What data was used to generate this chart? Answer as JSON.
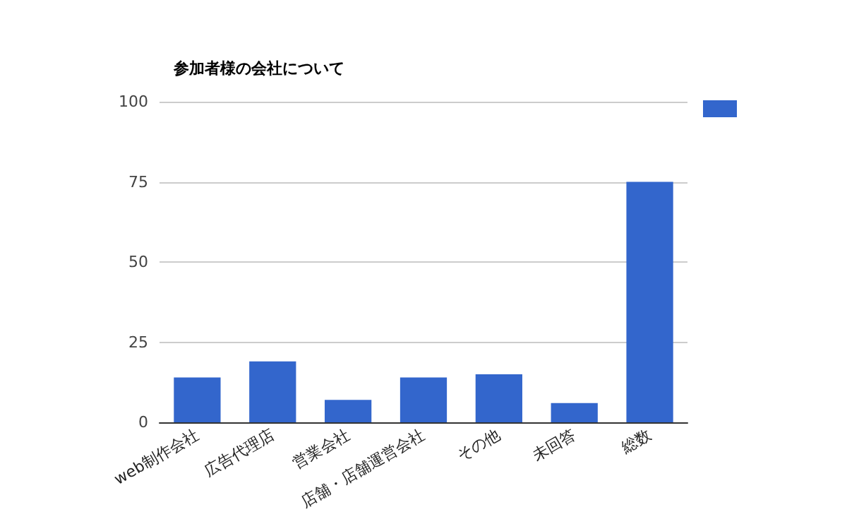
{
  "chart_data": {
    "type": "bar",
    "title": "参加者様の会社について",
    "categories": [
      "web制作会社",
      "広告代理店",
      "営業会社",
      "店舗・店舗運営会社",
      "その他",
      "未回答",
      "総数"
    ],
    "series": [
      {
        "color": "#3366cc",
        "values": [
          14,
          19,
          7,
          14,
          15,
          6,
          75
        ]
      }
    ],
    "ylim": [
      0,
      100
    ],
    "yticks": [
      0,
      25,
      50,
      75,
      100
    ],
    "grid": "y"
  }
}
